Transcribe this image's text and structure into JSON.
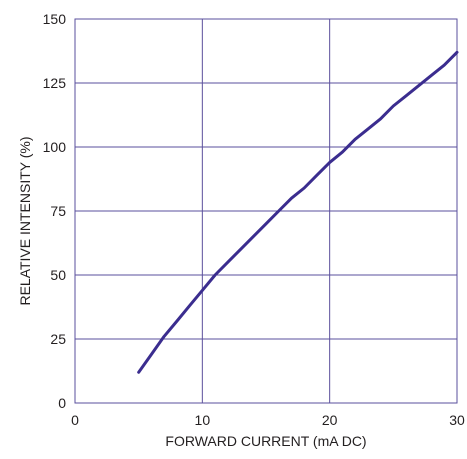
{
  "chart_data": {
    "type": "line",
    "title": "",
    "xlabel": "FORWARD CURRENT (mA DC)",
    "ylabel": "RELATIVE INTENSITY (%)",
    "xlim": [
      0,
      30
    ],
    "ylim": [
      0,
      150
    ],
    "x_ticks": [
      0,
      10,
      20,
      30
    ],
    "y_ticks": [
      0,
      25,
      50,
      75,
      100,
      125,
      150
    ],
    "grid": true,
    "legend": "none",
    "series": [
      {
        "color": "#3b2d8f",
        "x": [
          5,
          6,
          7,
          8,
          9,
          10,
          11,
          12,
          13,
          14,
          15,
          16,
          17,
          18,
          19,
          20,
          21,
          22,
          23,
          24,
          25,
          26,
          27,
          28,
          29,
          30
        ],
        "y": [
          12,
          19,
          26,
          32,
          38,
          44,
          50,
          55,
          60,
          65,
          70,
          75,
          80,
          84,
          89,
          94,
          98,
          103,
          107,
          111,
          116,
          120,
          124,
          128,
          132,
          137
        ]
      }
    ]
  },
  "colors": {
    "grid": "#5a4f9c",
    "axis": "#5a4f9c",
    "curve": "#3b2d8f",
    "text": "#231f20"
  }
}
